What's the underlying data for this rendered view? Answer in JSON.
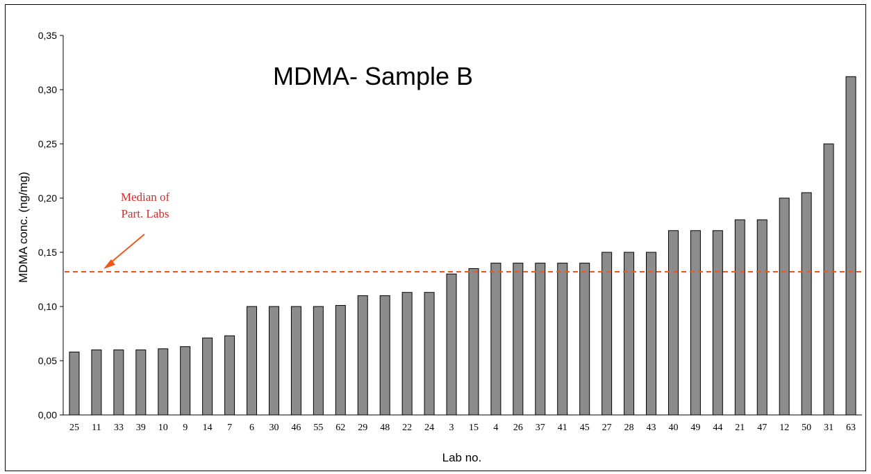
{
  "chart_data": {
    "type": "bar",
    "title": "MDMA- Sample B",
    "xlabel": "Lab no.",
    "ylabel": "MDMA conc. (ng/mg)",
    "ylim": [
      0,
      0.35
    ],
    "yticks": [
      "0,00",
      "0,05",
      "0,10",
      "0,15",
      "0,20",
      "0,25",
      "0,30",
      "0,35"
    ],
    "ytick_values": [
      0,
      0.05,
      0.1,
      0.15,
      0.2,
      0.25,
      0.3,
      0.35
    ],
    "categories": [
      "25",
      "11",
      "33",
      "39",
      "10",
      "9",
      "14",
      "7",
      "6",
      "30",
      "46",
      "55",
      "62",
      "29",
      "48",
      "22",
      "24",
      "3",
      "15",
      "4",
      "26",
      "37",
      "41",
      "45",
      "27",
      "28",
      "43",
      "40",
      "49",
      "44",
      "21",
      "47",
      "12",
      "50",
      "31",
      "63"
    ],
    "values": [
      0.058,
      0.06,
      0.06,
      0.06,
      0.061,
      0.063,
      0.071,
      0.073,
      0.1,
      0.1,
      0.1,
      0.1,
      0.101,
      0.11,
      0.11,
      0.113,
      0.113,
      0.13,
      0.135,
      0.14,
      0.14,
      0.14,
      0.14,
      0.14,
      0.15,
      0.15,
      0.15,
      0.17,
      0.17,
      0.17,
      0.18,
      0.18,
      0.2,
      0.205,
      0.25,
      0.312
    ],
    "grid": false,
    "median": {
      "value": 0.132,
      "label_lines": [
        "Median of",
        "Part. Labs"
      ]
    },
    "colors": {
      "bar_fill": "#8c8c8c",
      "bar_stroke": "#000000",
      "median_line": "#f0581a",
      "annotation_text": "#d42a2a"
    }
  }
}
